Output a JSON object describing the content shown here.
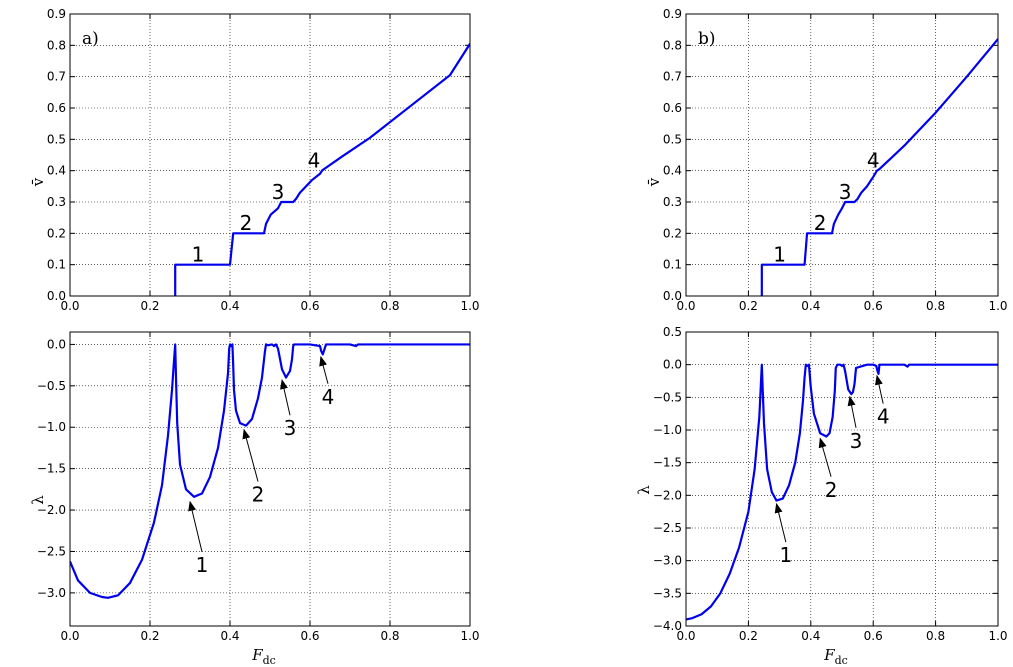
{
  "figure": {
    "line_color": "#0000ee",
    "xlabel_main": "F",
    "xlabel_sub": "dc"
  },
  "chart_data": [
    {
      "id": "a_top",
      "type": "line",
      "panel_label": "a)",
      "ylabel": "v̄",
      "xlim": [
        0,
        1.0
      ],
      "ylim": [
        0,
        0.9
      ],
      "xticks": [
        0.0,
        0.2,
        0.4,
        0.6,
        0.8,
        1.0
      ],
      "xtick_labels": [
        "0.0",
        "0.2",
        "0.4",
        "0.6",
        "0.8",
        "1.0"
      ],
      "yticks": [
        0.0,
        0.1,
        0.2,
        0.3,
        0.4,
        0.5,
        0.6,
        0.7,
        0.8,
        0.9
      ],
      "ytick_labels": [
        "0.0",
        "0.1",
        "0.2",
        "0.3",
        "0.4",
        "0.5",
        "0.6",
        "0.7",
        "0.8",
        "0.9"
      ],
      "grid": true,
      "series": [
        {
          "x": [
            0.263,
            0.263,
            0.4,
            0.404,
            0.408,
            0.485,
            0.49,
            0.502,
            0.52,
            0.528,
            0.535,
            0.558,
            0.565,
            0.575,
            0.59,
            0.605,
            0.625,
            0.63,
            0.635,
            0.68,
            0.75,
            0.85,
            0.95,
            1.0
          ],
          "y": [
            0.0,
            0.1,
            0.1,
            0.15,
            0.2,
            0.2,
            0.23,
            0.26,
            0.28,
            0.3,
            0.3,
            0.3,
            0.31,
            0.33,
            0.35,
            0.37,
            0.39,
            0.4,
            0.405,
            0.445,
            0.505,
            0.605,
            0.705,
            0.805
          ]
        }
      ],
      "annotations": [
        {
          "text": "1",
          "x": 0.32,
          "y": 0.11
        },
        {
          "text": "2",
          "x": 0.44,
          "y": 0.21
        },
        {
          "text": "3",
          "x": 0.52,
          "y": 0.31
        },
        {
          "text": "4",
          "x": 0.61,
          "y": 0.41
        }
      ]
    },
    {
      "id": "b_top",
      "type": "line",
      "panel_label": "b)",
      "ylabel": "v̄",
      "xlim": [
        0,
        1.0
      ],
      "ylim": [
        0,
        0.9
      ],
      "xticks": [
        0.0,
        0.2,
        0.4,
        0.6,
        0.8,
        1.0
      ],
      "xtick_labels": [
        "0.0",
        "0.2",
        "0.4",
        "0.6",
        "0.8",
        "1.0"
      ],
      "yticks": [
        0.0,
        0.1,
        0.2,
        0.3,
        0.4,
        0.5,
        0.6,
        0.7,
        0.8,
        0.9
      ],
      "ytick_labels": [
        "0.0",
        "0.1",
        "0.2",
        "0.3",
        "0.4",
        "0.5",
        "0.6",
        "0.7",
        "0.8",
        "0.9"
      ],
      "grid": true,
      "series": [
        {
          "x": [
            0.243,
            0.243,
            0.38,
            0.384,
            0.388,
            0.468,
            0.474,
            0.488,
            0.5,
            0.51,
            0.522,
            0.54,
            0.55,
            0.562,
            0.58,
            0.6,
            0.612,
            0.62,
            0.7,
            0.8,
            0.9,
            1.0
          ],
          "y": [
            0.0,
            0.1,
            0.1,
            0.15,
            0.2,
            0.2,
            0.23,
            0.26,
            0.28,
            0.3,
            0.3,
            0.3,
            0.31,
            0.33,
            0.35,
            0.38,
            0.4,
            0.405,
            0.48,
            0.585,
            0.7,
            0.82
          ]
        }
      ],
      "annotations": [
        {
          "text": "1",
          "x": 0.3,
          "y": 0.11
        },
        {
          "text": "2",
          "x": 0.43,
          "y": 0.21
        },
        {
          "text": "3",
          "x": 0.51,
          "y": 0.31
        },
        {
          "text": "4",
          "x": 0.6,
          "y": 0.41
        }
      ]
    },
    {
      "id": "a_bottom",
      "type": "line",
      "ylabel": "λ",
      "xlim": [
        0,
        1.0
      ],
      "ylim": [
        -3.4,
        0.15
      ],
      "xticks": [
        0.0,
        0.2,
        0.4,
        0.6,
        0.8,
        1.0
      ],
      "xtick_labels": [
        "0.0",
        "0.2",
        "0.4",
        "0.6",
        "0.8",
        "1.0"
      ],
      "yticks": [
        0.0,
        -0.5,
        -1.0,
        -1.5,
        -2.0,
        -2.5,
        -3.0
      ],
      "ytick_labels": [
        "0.0",
        "−0.5",
        "−1.0",
        "−1.5",
        "−2.0",
        "−2.5",
        "−3.0"
      ],
      "grid": true,
      "series": [
        {
          "x": [
            0.0,
            0.02,
            0.05,
            0.08,
            0.095,
            0.12,
            0.15,
            0.18,
            0.21,
            0.23,
            0.245,
            0.255,
            0.26,
            0.263,
            0.265,
            0.268,
            0.275,
            0.29,
            0.31,
            0.33,
            0.35,
            0.37,
            0.385,
            0.395,
            0.398,
            0.4,
            0.403,
            0.406,
            0.408,
            0.41,
            0.415,
            0.425,
            0.44,
            0.455,
            0.47,
            0.48,
            0.487,
            0.49,
            0.495,
            0.505,
            0.51,
            0.515,
            0.52,
            0.53,
            0.54,
            0.55,
            0.555,
            0.558,
            0.56,
            0.6,
            0.625,
            0.628,
            0.632,
            0.636,
            0.64,
            0.7,
            0.715,
            0.72,
            0.725,
            1.0
          ],
          "y": [
            -2.62,
            -2.85,
            -3.0,
            -3.05,
            -3.06,
            -3.03,
            -2.88,
            -2.6,
            -2.15,
            -1.7,
            -1.1,
            -0.55,
            -0.2,
            0.0,
            -0.4,
            -0.95,
            -1.45,
            -1.75,
            -1.84,
            -1.8,
            -1.6,
            -1.25,
            -0.8,
            -0.35,
            -0.05,
            0.0,
            -0.02,
            0.0,
            -0.25,
            -0.55,
            -0.8,
            -0.95,
            -0.98,
            -0.9,
            -0.65,
            -0.4,
            -0.1,
            0.0,
            -0.01,
            0.0,
            -0.02,
            0.0,
            -0.05,
            -0.3,
            -0.4,
            -0.32,
            -0.18,
            -0.02,
            0.0,
            0.0,
            -0.02,
            -0.08,
            -0.12,
            -0.06,
            0.0,
            0.0,
            -0.02,
            0.0,
            0.0,
            0.0
          ]
        }
      ],
      "annotations": [
        {
          "text": "1",
          "x": 0.33,
          "y": -2.65,
          "arrow_to_x": 0.3,
          "arrow_to_y": -1.9
        },
        {
          "text": "2",
          "x": 0.47,
          "y": -1.8,
          "arrow_to_x": 0.435,
          "arrow_to_y": -1.03
        },
        {
          "text": "3",
          "x": 0.55,
          "y": -1.0,
          "arrow_to_x": 0.53,
          "arrow_to_y": -0.43
        },
        {
          "text": "4",
          "x": 0.645,
          "y": -0.62,
          "arrow_to_x": 0.627,
          "arrow_to_y": -0.15
        }
      ]
    },
    {
      "id": "b_bottom",
      "type": "line",
      "ylabel": "λ",
      "xlim": [
        0,
        1.0
      ],
      "ylim": [
        -4.0,
        0.5
      ],
      "xticks": [
        0.0,
        0.2,
        0.4,
        0.6,
        0.8,
        1.0
      ],
      "xtick_labels": [
        "0.0",
        "0.2",
        "0.4",
        "0.6",
        "0.8",
        "1.0"
      ],
      "yticks": [
        0.5,
        0.0,
        -0.5,
        -1.0,
        -1.5,
        -2.0,
        -2.5,
        -3.0,
        -3.5,
        -4.0
      ],
      "ytick_labels": [
        "0.5",
        "0.0",
        "−0.5",
        "−1.0",
        "−1.5",
        "−2.0",
        "−2.5",
        "−3.0",
        "−3.5",
        "−4.0"
      ],
      "grid": true,
      "series": [
        {
          "x": [
            0.0,
            0.02,
            0.05,
            0.08,
            0.11,
            0.14,
            0.17,
            0.2,
            0.22,
            0.235,
            0.24,
            0.243,
            0.246,
            0.25,
            0.26,
            0.275,
            0.29,
            0.31,
            0.33,
            0.35,
            0.365,
            0.375,
            0.38,
            0.384,
            0.39,
            0.394,
            0.4,
            0.41,
            0.43,
            0.45,
            0.46,
            0.47,
            0.477,
            0.48,
            0.485,
            0.495,
            0.5,
            0.505,
            0.51,
            0.52,
            0.53,
            0.535,
            0.54,
            0.545,
            0.58,
            0.6,
            0.61,
            0.614,
            0.617,
            0.62,
            0.7,
            0.71,
            0.715,
            1.0
          ],
          "y": [
            -3.9,
            -3.88,
            -3.82,
            -3.7,
            -3.5,
            -3.2,
            -2.8,
            -2.25,
            -1.6,
            -0.8,
            -0.3,
            0.0,
            -0.4,
            -0.9,
            -1.6,
            -1.95,
            -2.08,
            -2.05,
            -1.85,
            -1.5,
            -1.05,
            -0.55,
            -0.2,
            0.0,
            -0.02,
            0.0,
            -0.35,
            -0.75,
            -1.05,
            -1.1,
            -1.05,
            -0.8,
            -0.4,
            -0.05,
            0.0,
            0.0,
            -0.02,
            0.0,
            -0.1,
            -0.38,
            -0.45,
            -0.42,
            -0.3,
            -0.05,
            0.0,
            0.0,
            -0.02,
            -0.1,
            -0.14,
            0.0,
            0.0,
            -0.03,
            0.0,
            0.0
          ]
        }
      ],
      "annotations": [
        {
          "text": "1",
          "x": 0.32,
          "y": -2.9,
          "arrow_to_x": 0.29,
          "arrow_to_y": -2.13
        },
        {
          "text": "2",
          "x": 0.465,
          "y": -1.9,
          "arrow_to_x": 0.43,
          "arrow_to_y": -1.13
        },
        {
          "text": "3",
          "x": 0.545,
          "y": -1.15,
          "arrow_to_x": 0.525,
          "arrow_to_y": -0.49
        },
        {
          "text": "4",
          "x": 0.632,
          "y": -0.78,
          "arrow_to_x": 0.612,
          "arrow_to_y": -0.17
        }
      ]
    }
  ]
}
